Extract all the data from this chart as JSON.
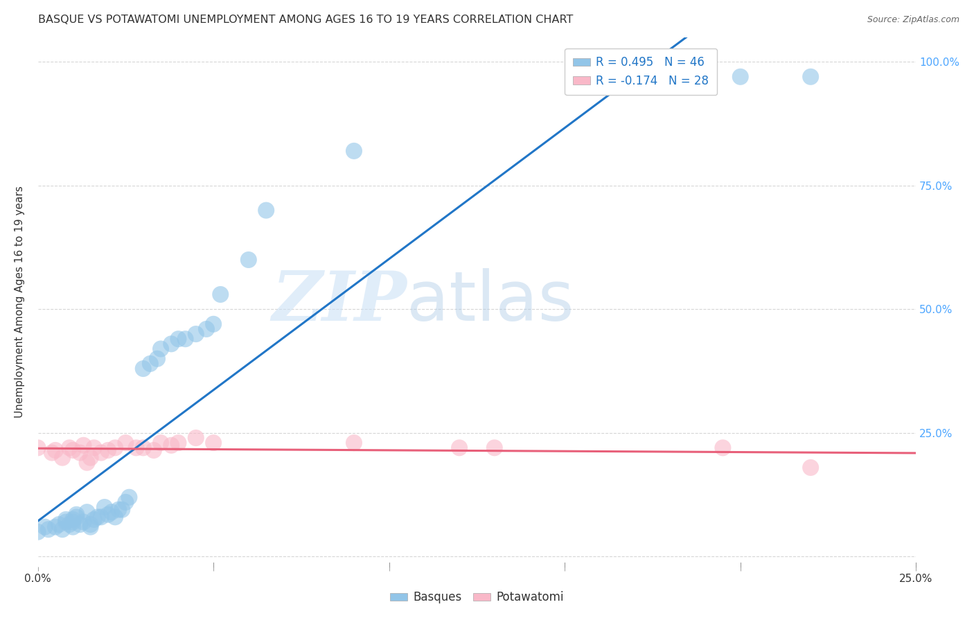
{
  "title": "BASQUE VS POTAWATOMI UNEMPLOYMENT AMONG AGES 16 TO 19 YEARS CORRELATION CHART",
  "source": "Source: ZipAtlas.com",
  "ylabel": "Unemployment Among Ages 16 to 19 years",
  "xlim": [
    0.0,
    0.25
  ],
  "ylim": [
    -0.02,
    1.05
  ],
  "xticks": [
    0.0,
    0.05,
    0.1,
    0.15,
    0.2,
    0.25
  ],
  "xticklabels": [
    "0.0%",
    "",
    "",
    "",
    "",
    "25.0%"
  ],
  "yticks": [
    0.0,
    0.25,
    0.5,
    0.75,
    1.0
  ],
  "yticklabels_right": [
    "",
    "25.0%",
    "50.0%",
    "75.0%",
    "100.0%"
  ],
  "basque_color": "#92c5e8",
  "potawatomi_color": "#f9b8c8",
  "basque_line_color": "#2176c7",
  "potawatomi_line_color": "#e8607a",
  "watermark_zip": "ZIP",
  "watermark_atlas": "atlas",
  "background_color": "#ffffff",
  "grid_color": "#cccccc",
  "title_fontsize": 11.5,
  "axis_label_fontsize": 11,
  "tick_color_right": "#4da6ff",
  "tick_color_x": "#333333",
  "basque_x": [
    0.0,
    0.002,
    0.003,
    0.005,
    0.006,
    0.007,
    0.008,
    0.008,
    0.009,
    0.01,
    0.01,
    0.01,
    0.011,
    0.011,
    0.012,
    0.013,
    0.014,
    0.015,
    0.015,
    0.016,
    0.017,
    0.018,
    0.019,
    0.02,
    0.021,
    0.022,
    0.023,
    0.024,
    0.025,
    0.026,
    0.03,
    0.032,
    0.034,
    0.035,
    0.038,
    0.04,
    0.042,
    0.045,
    0.048,
    0.05,
    0.052,
    0.06,
    0.065,
    0.09,
    0.2,
    0.22
  ],
  "basque_y": [
    0.05,
    0.06,
    0.055,
    0.06,
    0.065,
    0.055,
    0.07,
    0.075,
    0.065,
    0.06,
    0.07,
    0.075,
    0.08,
    0.085,
    0.065,
    0.07,
    0.09,
    0.06,
    0.065,
    0.075,
    0.08,
    0.08,
    0.1,
    0.085,
    0.09,
    0.08,
    0.095,
    0.095,
    0.11,
    0.12,
    0.38,
    0.39,
    0.4,
    0.42,
    0.43,
    0.44,
    0.44,
    0.45,
    0.46,
    0.47,
    0.53,
    0.6,
    0.7,
    0.82,
    0.97,
    0.97
  ],
  "potawatomi_x": [
    0.0,
    0.004,
    0.005,
    0.007,
    0.009,
    0.01,
    0.012,
    0.013,
    0.014,
    0.015,
    0.016,
    0.018,
    0.02,
    0.022,
    0.025,
    0.028,
    0.03,
    0.033,
    0.035,
    0.038,
    0.04,
    0.045,
    0.05,
    0.09,
    0.12,
    0.13,
    0.195,
    0.22
  ],
  "potawatomi_y": [
    0.22,
    0.21,
    0.215,
    0.2,
    0.22,
    0.215,
    0.21,
    0.225,
    0.19,
    0.2,
    0.22,
    0.21,
    0.215,
    0.22,
    0.23,
    0.22,
    0.22,
    0.215,
    0.23,
    0.225,
    0.23,
    0.24,
    0.23,
    0.23,
    0.22,
    0.22,
    0.22,
    0.18
  ],
  "legend_entries": [
    {
      "label": "R = 0.495   N = 46",
      "color": "#92c5e8"
    },
    {
      "label": "R = -0.174   N = 28",
      "color": "#f9b8c8"
    }
  ],
  "legend_label_color": "#2176c7"
}
